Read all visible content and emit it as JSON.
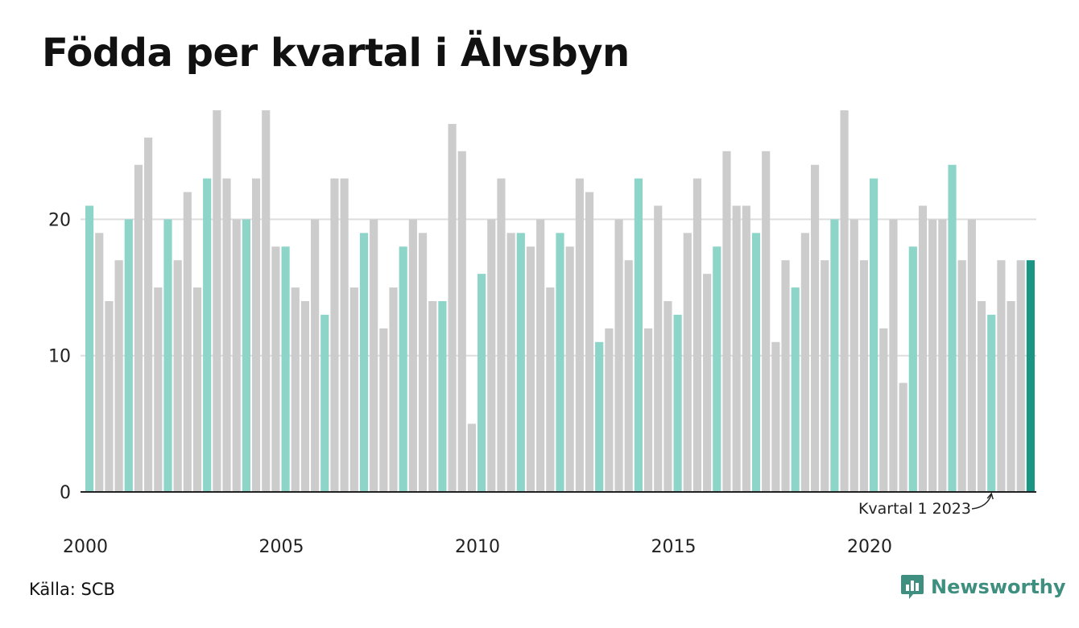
{
  "title": "Födda per kvartal i Älvsbyn",
  "source": "Källa: SCB",
  "brand": {
    "name": "Newsworthy",
    "logo_icon": "newsworthy-logo-icon"
  },
  "colors": {
    "q1": "#8dd4c9",
    "other": "#cccccc",
    "latest": "#1a9583",
    "gridline": "#dddddd",
    "axis": "#222222",
    "brand": "#3f8f80"
  },
  "chart_data": {
    "type": "bar",
    "title": "Födda per kvartal i Älvsbyn",
    "xlabel": "",
    "ylabel": "",
    "ylim": [
      0,
      28
    ],
    "yticks": [
      0,
      10,
      20
    ],
    "xtick_labels": [
      "2000",
      "2005",
      "2010",
      "2015",
      "2020"
    ],
    "grid": true,
    "start": {
      "year": 2000,
      "quarter": 1
    },
    "values": [
      21,
      19,
      14,
      17,
      20,
      24,
      26,
      15,
      20,
      17,
      22,
      15,
      23,
      28,
      23,
      20,
      20,
      23,
      28,
      18,
      18,
      15,
      14,
      20,
      13,
      23,
      23,
      15,
      19,
      20,
      12,
      15,
      18,
      20,
      19,
      14,
      14,
      27,
      25,
      5,
      16,
      20,
      23,
      19,
      19,
      18,
      20,
      15,
      19,
      18,
      23,
      22,
      11,
      12,
      20,
      17,
      23,
      12,
      21,
      14,
      13,
      19,
      23,
      16,
      18,
      25,
      21,
      21,
      19,
      25,
      11,
      17,
      15,
      19,
      24,
      17,
      20,
      28,
      20,
      17,
      23,
      12,
      20,
      8,
      18,
      21,
      20,
      20,
      24,
      17,
      20,
      14,
      13,
      17,
      14,
      17,
      17
    ],
    "annotation": {
      "label": "Kvartal 1 2023",
      "index": 92
    }
  }
}
